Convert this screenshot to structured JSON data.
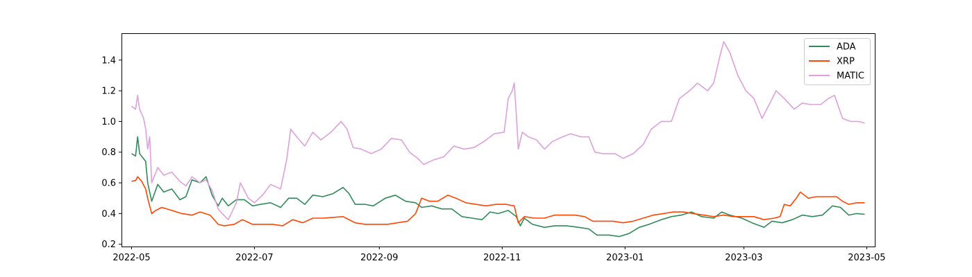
{
  "chart_data": {
    "type": "line",
    "title": "",
    "xlabel": "",
    "ylabel": "",
    "x_ticks": [
      "2022-05",
      "2022-07",
      "2022-09",
      "2022-11",
      "2023-01",
      "2023-03",
      "2023-05"
    ],
    "y_ticks": [
      "0.2",
      "0.4",
      "0.6",
      "0.8",
      "1.0",
      "1.2",
      "1.4"
    ],
    "xlim": [
      "2022-04-26",
      "2023-05-05"
    ],
    "ylim": [
      0.185,
      1.575
    ],
    "grid": false,
    "legend_position": "top-right",
    "series": [
      {
        "name": "ADA",
        "color": "#2e8b57",
        "points": [
          [
            "2022-05-01",
            0.79
          ],
          [
            "2022-05-03",
            0.775
          ],
          [
            "2022-05-04",
            0.9
          ],
          [
            "2022-05-05",
            0.79
          ],
          [
            "2022-05-08",
            0.74
          ],
          [
            "2022-05-09",
            0.6
          ],
          [
            "2022-05-11",
            0.48
          ],
          [
            "2022-05-14",
            0.59
          ],
          [
            "2022-05-17",
            0.54
          ],
          [
            "2022-05-21",
            0.56
          ],
          [
            "2022-05-25",
            0.49
          ],
          [
            "2022-05-28",
            0.51
          ],
          [
            "2022-05-31",
            0.62
          ],
          [
            "2022-06-04",
            0.6
          ],
          [
            "2022-06-07",
            0.64
          ],
          [
            "2022-06-10",
            0.52
          ],
          [
            "2022-06-13",
            0.45
          ],
          [
            "2022-06-15",
            0.5
          ],
          [
            "2022-06-18",
            0.45
          ],
          [
            "2022-06-22",
            0.49
          ],
          [
            "2022-06-26",
            0.49
          ],
          [
            "2022-06-30",
            0.45
          ],
          [
            "2022-07-04",
            0.46
          ],
          [
            "2022-07-09",
            0.47
          ],
          [
            "2022-07-14",
            0.44
          ],
          [
            "2022-07-18",
            0.5
          ],
          [
            "2022-07-22",
            0.5
          ],
          [
            "2022-07-26",
            0.46
          ],
          [
            "2022-07-30",
            0.52
          ],
          [
            "2022-08-04",
            0.51
          ],
          [
            "2022-08-09",
            0.53
          ],
          [
            "2022-08-14",
            0.57
          ],
          [
            "2022-08-17",
            0.53
          ],
          [
            "2022-08-20",
            0.46
          ],
          [
            "2022-08-25",
            0.46
          ],
          [
            "2022-08-29",
            0.45
          ],
          [
            "2022-09-04",
            0.5
          ],
          [
            "2022-09-09",
            0.52
          ],
          [
            "2022-09-14",
            0.48
          ],
          [
            "2022-09-19",
            0.47
          ],
          [
            "2022-09-22",
            0.44
          ],
          [
            "2022-09-27",
            0.45
          ],
          [
            "2022-10-02",
            0.43
          ],
          [
            "2022-10-07",
            0.43
          ],
          [
            "2022-10-12",
            0.38
          ],
          [
            "2022-10-17",
            0.37
          ],
          [
            "2022-10-22",
            0.36
          ],
          [
            "2022-10-26",
            0.41
          ],
          [
            "2022-10-30",
            0.4
          ],
          [
            "2022-11-04",
            0.42
          ],
          [
            "2022-11-08",
            0.38
          ],
          [
            "2022-11-10",
            0.32
          ],
          [
            "2022-11-12",
            0.37
          ],
          [
            "2022-11-16",
            0.33
          ],
          [
            "2022-11-22",
            0.31
          ],
          [
            "2022-11-27",
            0.32
          ],
          [
            "2022-12-03",
            0.32
          ],
          [
            "2022-12-09",
            0.31
          ],
          [
            "2022-12-14",
            0.3
          ],
          [
            "2022-12-18",
            0.26
          ],
          [
            "2022-12-24",
            0.26
          ],
          [
            "2022-12-29",
            0.25
          ],
          [
            "2023-01-03",
            0.27
          ],
          [
            "2023-01-08",
            0.31
          ],
          [
            "2023-01-13",
            0.33
          ],
          [
            "2023-01-19",
            0.36
          ],
          [
            "2023-01-24",
            0.38
          ],
          [
            "2023-01-29",
            0.39
          ],
          [
            "2023-02-03",
            0.41
          ],
          [
            "2023-02-08",
            0.38
          ],
          [
            "2023-02-14",
            0.37
          ],
          [
            "2023-02-18",
            0.41
          ],
          [
            "2023-02-22",
            0.39
          ],
          [
            "2023-02-28",
            0.37
          ],
          [
            "2023-03-05",
            0.34
          ],
          [
            "2023-03-11",
            0.31
          ],
          [
            "2023-03-15",
            0.35
          ],
          [
            "2023-03-20",
            0.34
          ],
          [
            "2023-03-25",
            0.36
          ],
          [
            "2023-03-30",
            0.39
          ],
          [
            "2023-04-04",
            0.38
          ],
          [
            "2023-04-09",
            0.39
          ],
          [
            "2023-04-14",
            0.45
          ],
          [
            "2023-04-18",
            0.44
          ],
          [
            "2023-04-22",
            0.39
          ],
          [
            "2023-04-26",
            0.4
          ],
          [
            "2023-04-30",
            0.395
          ]
        ]
      },
      {
        "name": "XRP",
        "color": "#ff4500",
        "points": [
          [
            "2022-05-01",
            0.61
          ],
          [
            "2022-05-03",
            0.615
          ],
          [
            "2022-05-04",
            0.64
          ],
          [
            "2022-05-06",
            0.61
          ],
          [
            "2022-05-08",
            0.56
          ],
          [
            "2022-05-09",
            0.5
          ],
          [
            "2022-05-11",
            0.4
          ],
          [
            "2022-05-13",
            0.42
          ],
          [
            "2022-05-16",
            0.44
          ],
          [
            "2022-05-21",
            0.42
          ],
          [
            "2022-05-26",
            0.4
          ],
          [
            "2022-05-31",
            0.39
          ],
          [
            "2022-06-04",
            0.41
          ],
          [
            "2022-06-09",
            0.39
          ],
          [
            "2022-06-13",
            0.33
          ],
          [
            "2022-06-16",
            0.32
          ],
          [
            "2022-06-21",
            0.33
          ],
          [
            "2022-06-25",
            0.36
          ],
          [
            "2022-06-30",
            0.33
          ],
          [
            "2022-07-05",
            0.33
          ],
          [
            "2022-07-10",
            0.33
          ],
          [
            "2022-07-15",
            0.32
          ],
          [
            "2022-07-20",
            0.36
          ],
          [
            "2022-07-25",
            0.34
          ],
          [
            "2022-07-30",
            0.37
          ],
          [
            "2022-08-04",
            0.37
          ],
          [
            "2022-08-09",
            0.375
          ],
          [
            "2022-08-14",
            0.38
          ],
          [
            "2022-08-20",
            0.34
          ],
          [
            "2022-08-25",
            0.33
          ],
          [
            "2022-08-31",
            0.33
          ],
          [
            "2022-09-05",
            0.33
          ],
          [
            "2022-09-10",
            0.34
          ],
          [
            "2022-09-15",
            0.35
          ],
          [
            "2022-09-19",
            0.4
          ],
          [
            "2022-09-22",
            0.5
          ],
          [
            "2022-09-26",
            0.48
          ],
          [
            "2022-09-30",
            0.48
          ],
          [
            "2022-10-05",
            0.52
          ],
          [
            "2022-10-09",
            0.5
          ],
          [
            "2022-10-14",
            0.47
          ],
          [
            "2022-10-19",
            0.46
          ],
          [
            "2022-10-24",
            0.45
          ],
          [
            "2022-10-29",
            0.46
          ],
          [
            "2022-11-03",
            0.46
          ],
          [
            "2022-11-07",
            0.45
          ],
          [
            "2022-11-09",
            0.34
          ],
          [
            "2022-11-12",
            0.38
          ],
          [
            "2022-11-17",
            0.37
          ],
          [
            "2022-11-22",
            0.37
          ],
          [
            "2022-11-27",
            0.39
          ],
          [
            "2022-12-02",
            0.39
          ],
          [
            "2022-12-07",
            0.39
          ],
          [
            "2022-12-12",
            0.38
          ],
          [
            "2022-12-16",
            0.35
          ],
          [
            "2022-12-21",
            0.35
          ],
          [
            "2022-12-26",
            0.35
          ],
          [
            "2022-12-31",
            0.34
          ],
          [
            "2023-01-05",
            0.35
          ],
          [
            "2023-01-10",
            0.37
          ],
          [
            "2023-01-15",
            0.39
          ],
          [
            "2023-01-20",
            0.4
          ],
          [
            "2023-01-25",
            0.41
          ],
          [
            "2023-01-30",
            0.41
          ],
          [
            "2023-02-04",
            0.4
          ],
          [
            "2023-02-09",
            0.39
          ],
          [
            "2023-02-14",
            0.38
          ],
          [
            "2023-02-19",
            0.39
          ],
          [
            "2023-02-24",
            0.38
          ],
          [
            "2023-03-01",
            0.38
          ],
          [
            "2023-03-06",
            0.38
          ],
          [
            "2023-03-11",
            0.36
          ],
          [
            "2023-03-16",
            0.37
          ],
          [
            "2023-03-19",
            0.38
          ],
          [
            "2023-03-21",
            0.46
          ],
          [
            "2023-03-24",
            0.45
          ],
          [
            "2023-03-27",
            0.5
          ],
          [
            "2023-03-29",
            0.54
          ],
          [
            "2023-04-02",
            0.5
          ],
          [
            "2023-04-06",
            0.51
          ],
          [
            "2023-04-11",
            0.51
          ],
          [
            "2023-04-16",
            0.51
          ],
          [
            "2023-04-19",
            0.48
          ],
          [
            "2023-04-22",
            0.46
          ],
          [
            "2023-04-26",
            0.47
          ],
          [
            "2023-04-30",
            0.47
          ]
        ]
      },
      {
        "name": "MATIC",
        "color": "#dda0dd",
        "points": [
          [
            "2022-05-01",
            1.1
          ],
          [
            "2022-05-03",
            1.08
          ],
          [
            "2022-05-04",
            1.17
          ],
          [
            "2022-05-05",
            1.08
          ],
          [
            "2022-05-07",
            1.02
          ],
          [
            "2022-05-08",
            0.95
          ],
          [
            "2022-05-09",
            0.82
          ],
          [
            "2022-05-10",
            0.9
          ],
          [
            "2022-05-11",
            0.6
          ],
          [
            "2022-05-14",
            0.7
          ],
          [
            "2022-05-17",
            0.65
          ],
          [
            "2022-05-21",
            0.67
          ],
          [
            "2022-05-25",
            0.61
          ],
          [
            "2022-05-28",
            0.58
          ],
          [
            "2022-05-31",
            0.64
          ],
          [
            "2022-06-04",
            0.6
          ],
          [
            "2022-06-07",
            0.62
          ],
          [
            "2022-06-10",
            0.55
          ],
          [
            "2022-06-13",
            0.43
          ],
          [
            "2022-06-15",
            0.4
          ],
          [
            "2022-06-18",
            0.36
          ],
          [
            "2022-06-22",
            0.47
          ],
          [
            "2022-06-24",
            0.6
          ],
          [
            "2022-06-28",
            0.5
          ],
          [
            "2022-07-01",
            0.47
          ],
          [
            "2022-07-05",
            0.52
          ],
          [
            "2022-07-09",
            0.59
          ],
          [
            "2022-07-14",
            0.56
          ],
          [
            "2022-07-17",
            0.75
          ],
          [
            "2022-07-19",
            0.95
          ],
          [
            "2022-07-22",
            0.9
          ],
          [
            "2022-07-26",
            0.84
          ],
          [
            "2022-07-30",
            0.93
          ],
          [
            "2022-08-03",
            0.88
          ],
          [
            "2022-08-08",
            0.93
          ],
          [
            "2022-08-13",
            1.0
          ],
          [
            "2022-08-16",
            0.95
          ],
          [
            "2022-08-19",
            0.83
          ],
          [
            "2022-08-23",
            0.82
          ],
          [
            "2022-08-28",
            0.79
          ],
          [
            "2022-09-02",
            0.82
          ],
          [
            "2022-09-07",
            0.89
          ],
          [
            "2022-09-12",
            0.88
          ],
          [
            "2022-09-16",
            0.8
          ],
          [
            "2022-09-20",
            0.76
          ],
          [
            "2022-09-23",
            0.72
          ],
          [
            "2022-09-28",
            0.75
          ],
          [
            "2022-10-03",
            0.77
          ],
          [
            "2022-10-08",
            0.84
          ],
          [
            "2022-10-13",
            0.82
          ],
          [
            "2022-10-18",
            0.83
          ],
          [
            "2022-10-23",
            0.87
          ],
          [
            "2022-10-28",
            0.92
          ],
          [
            "2022-11-02",
            0.93
          ],
          [
            "2022-11-04",
            1.15
          ],
          [
            "2022-11-06",
            1.2
          ],
          [
            "2022-11-07",
            1.25
          ],
          [
            "2022-11-08",
            1.05
          ],
          [
            "2022-11-09",
            0.82
          ],
          [
            "2022-11-11",
            0.93
          ],
          [
            "2022-11-14",
            0.9
          ],
          [
            "2022-11-18",
            0.88
          ],
          [
            "2022-11-22",
            0.82
          ],
          [
            "2022-11-26",
            0.87
          ],
          [
            "2022-12-01",
            0.9
          ],
          [
            "2022-12-05",
            0.92
          ],
          [
            "2022-12-10",
            0.9
          ],
          [
            "2022-12-14",
            0.9
          ],
          [
            "2022-12-17",
            0.8
          ],
          [
            "2022-12-21",
            0.79
          ],
          [
            "2022-12-27",
            0.79
          ],
          [
            "2022-12-31",
            0.76
          ],
          [
            "2023-01-05",
            0.79
          ],
          [
            "2023-01-10",
            0.85
          ],
          [
            "2023-01-14",
            0.95
          ],
          [
            "2023-01-19",
            1.0
          ],
          [
            "2023-01-24",
            1.0
          ],
          [
            "2023-01-28",
            1.15
          ],
          [
            "2023-02-02",
            1.2
          ],
          [
            "2023-02-06",
            1.25
          ],
          [
            "2023-02-11",
            1.2
          ],
          [
            "2023-02-14",
            1.25
          ],
          [
            "2023-02-17",
            1.42
          ],
          [
            "2023-02-19",
            1.52
          ],
          [
            "2023-02-22",
            1.45
          ],
          [
            "2023-02-26",
            1.3
          ],
          [
            "2023-03-02",
            1.2
          ],
          [
            "2023-03-06",
            1.15
          ],
          [
            "2023-03-10",
            1.02
          ],
          [
            "2023-03-14",
            1.12
          ],
          [
            "2023-03-17",
            1.2
          ],
          [
            "2023-03-21",
            1.15
          ],
          [
            "2023-03-26",
            1.08
          ],
          [
            "2023-03-30",
            1.12
          ],
          [
            "2023-04-03",
            1.11
          ],
          [
            "2023-04-08",
            1.11
          ],
          [
            "2023-04-12",
            1.15
          ],
          [
            "2023-04-15",
            1.17
          ],
          [
            "2023-04-19",
            1.02
          ],
          [
            "2023-04-23",
            1.0
          ],
          [
            "2023-04-27",
            1.0
          ],
          [
            "2023-04-30",
            0.99
          ]
        ]
      }
    ]
  }
}
